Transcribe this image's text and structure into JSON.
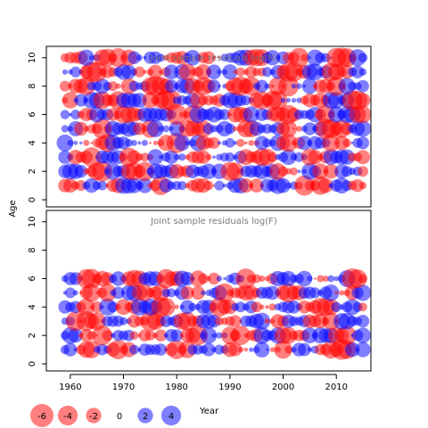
{
  "chart_data": {
    "type": "scatter",
    "subtype": "bubble",
    "shared_ylabel": "Age",
    "xlabel": "Year",
    "xlim": [
      1955.5,
      2016.5
    ],
    "x_ticks": [
      1960,
      1970,
      1980,
      1990,
      2000,
      2010
    ],
    "colors": {
      "positive": "#0000ff",
      "negative": "#ff0000"
    },
    "years": {
      "start": 1959,
      "end": 2015
    },
    "panels": [
      {
        "title": "Joint sample residuals log(N)",
        "ylim": [
          -0.5,
          10.8
        ],
        "y_ticks": [
          0,
          2,
          4,
          6,
          8,
          10
        ],
        "ages": [
          1,
          2,
          3,
          4,
          5,
          6,
          7,
          8,
          9,
          10
        ],
        "sign_pattern": "alternating blocks of positive and negative residuals",
        "residual_range": [
          -6,
          4
        ]
      },
      {
        "title": "Joint sample residuals log(F)",
        "ylim": [
          -0.5,
          10.8
        ],
        "y_ticks": [
          0,
          2,
          4,
          6,
          8,
          10
        ],
        "ages": [
          1,
          2,
          3,
          4,
          5,
          6
        ],
        "sign_pattern": "alternating blocks of positive and negative residuals",
        "residual_range": [
          -6,
          4
        ]
      }
    ],
    "legend": {
      "placement": "bottom-left",
      "title": "Year",
      "entries": [
        {
          "label": "-6",
          "value": -6
        },
        {
          "label": "-4",
          "value": -4
        },
        {
          "label": "-2",
          "value": -2
        },
        {
          "label": "0",
          "value": 0
        },
        {
          "label": "2",
          "value": 2
        },
        {
          "label": "4",
          "value": 4
        }
      ]
    }
  }
}
